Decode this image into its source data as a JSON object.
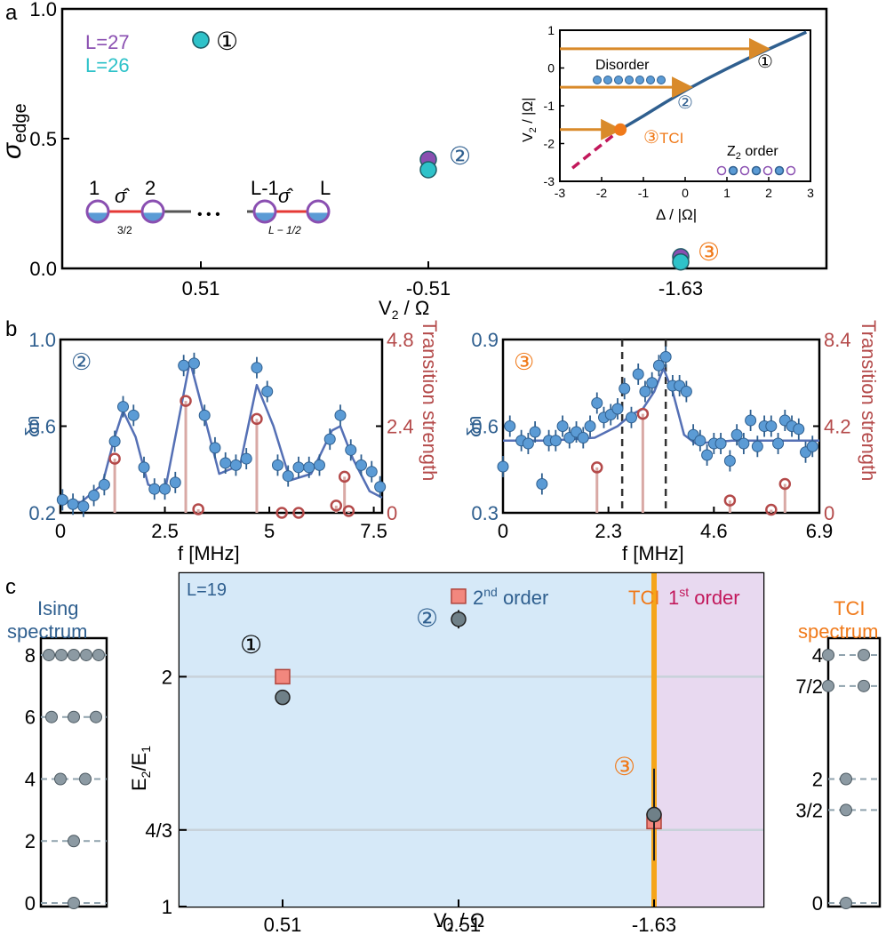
{
  "panel_labels": [
    "a",
    "b",
    "c"
  ],
  "colors": {
    "purple": "#8a4fb1",
    "teal": "#2ec2c9",
    "blue": "#5b9bd5",
    "darkblue": "#2f5f8f",
    "fit": "#5570b5",
    "orange": "#f07a1a",
    "arrow": "#d98a2a",
    "crimson": "#c2185b",
    "red_open": "#b44a4a",
    "stem": "#d9a9a5",
    "gray_dot": "#8c9aa3",
    "light_blue_region": "#d6e9f8",
    "light_purple_region": "#e8d9f0",
    "tci_line": "#f5a51a",
    "salmon": "#f2877e"
  },
  "chart_data": [
    {
      "id": "a-main",
      "type": "scatter",
      "ylabel": "σ",
      "ylabel_sub": "edge",
      "xlabel": "V",
      "xlabel_sub": "2",
      "xlabel_tail": " / Ω",
      "ylim": [
        0,
        1
      ],
      "yticks": [
        "0.0",
        "0.5",
        "1.0"
      ],
      "categories": [
        "0.51",
        "-0.51",
        "-1.63"
      ],
      "legend": [
        "L=27",
        "L=26"
      ],
      "series": [
        {
          "name": "L=27",
          "color": "purple",
          "points": [
            {
              "cat": 0,
              "y": 0.88
            },
            {
              "cat": 1,
              "y": 0.42
            },
            {
              "cat": 2,
              "y": 0.045
            }
          ]
        },
        {
          "name": "L=26",
          "color": "teal",
          "points": [
            {
              "cat": 0,
              "y": 0.88
            },
            {
              "cat": 1,
              "y": 0.38
            },
            {
              "cat": 2,
              "y": 0.025
            }
          ]
        }
      ],
      "annotations": [
        "①",
        "②",
        "③"
      ],
      "chain_labels": {
        "site1": "1",
        "site2": "2",
        "siteL1": "L-1",
        "siteL": "L",
        "sigma": "σ̂",
        "frac1": "3/2",
        "fracL": "L − 1/2",
        "dots": "• • •"
      }
    },
    {
      "id": "a-inset",
      "type": "line",
      "xlabel": "Δ / |Ω|",
      "ylabel": "V",
      "ylabel_sub": "2",
      "ylabel_tail": " / |Ω|",
      "xlim": [
        -3,
        3
      ],
      "ylim": [
        -3,
        1
      ],
      "xticks": [
        "-3",
        "-2",
        "-1",
        "0",
        "1",
        "2",
        "3"
      ],
      "yticks": [
        "1",
        "0",
        "-1",
        "-2",
        "-3"
      ],
      "boundary_solid": [
        [
          -1.55,
          -1.63
        ],
        [
          -1.0,
          -1.27
        ],
        [
          -0.5,
          -0.93
        ],
        [
          0.0,
          -0.6
        ],
        [
          0.5,
          -0.3
        ],
        [
          1.0,
          -0.02
        ],
        [
          1.5,
          0.25
        ],
        [
          2.0,
          0.5
        ],
        [
          2.5,
          0.75
        ],
        [
          2.9,
          0.95
        ]
      ],
      "boundary_dashed": [
        [
          -2.7,
          -2.65
        ],
        [
          -1.55,
          -1.63
        ]
      ],
      "tci_point": [
        -1.55,
        -1.63
      ],
      "arrows_y": [
        0.51,
        -0.51,
        -1.63
      ],
      "texts": {
        "disorder": "Disorder",
        "z2": "Z",
        "z2_sub": "2",
        "z2_tail": " order",
        "tci": "TCI",
        "m1": "①",
        "m2": "②",
        "m3": "③"
      }
    },
    {
      "id": "b-left",
      "type": "scatter",
      "annotation": "②",
      "xlabel": "f [MHz]",
      "ylabel": "δn",
      "ylabel_right": "Transition strength",
      "xlim": [
        0,
        7.7
      ],
      "ylim": [
        0.2,
        1.0
      ],
      "ylim_right": [
        0,
        4.8
      ],
      "xticks": [
        "0",
        "2.5",
        "5",
        "7.5"
      ],
      "yticks": [
        "0.2",
        "0.6",
        "1.0"
      ],
      "yticks_right": [
        "0",
        "2.4",
        "4.8"
      ],
      "points": [
        [
          0.05,
          0.26
        ],
        [
          0.3,
          0.24
        ],
        [
          0.55,
          0.23
        ],
        [
          0.8,
          0.28
        ],
        [
          1.05,
          0.33
        ],
        [
          1.3,
          0.53
        ],
        [
          1.5,
          0.69
        ],
        [
          1.75,
          0.65
        ],
        [
          2.0,
          0.41
        ],
        [
          2.25,
          0.31
        ],
        [
          2.5,
          0.31
        ],
        [
          2.75,
          0.34
        ],
        [
          2.95,
          0.88
        ],
        [
          3.2,
          0.89
        ],
        [
          3.45,
          0.65
        ],
        [
          3.7,
          0.5
        ],
        [
          3.95,
          0.43
        ],
        [
          4.2,
          0.42
        ],
        [
          4.45,
          0.45
        ],
        [
          4.7,
          0.87
        ],
        [
          4.95,
          0.76
        ],
        [
          5.2,
          0.42
        ],
        [
          5.45,
          0.37
        ],
        [
          5.7,
          0.41
        ],
        [
          5.95,
          0.41
        ],
        [
          6.2,
          0.42
        ],
        [
          6.45,
          0.54
        ],
        [
          6.7,
          0.65
        ],
        [
          6.95,
          0.49
        ],
        [
          7.2,
          0.42
        ],
        [
          7.45,
          0.39
        ],
        [
          7.65,
          0.32
        ]
      ],
      "fit": [
        [
          0,
          0.25
        ],
        [
          0.5,
          0.25
        ],
        [
          1.0,
          0.33
        ],
        [
          1.3,
          0.55
        ],
        [
          1.5,
          0.67
        ],
        [
          1.8,
          0.55
        ],
        [
          2.1,
          0.33
        ],
        [
          2.5,
          0.3
        ],
        [
          2.8,
          0.6
        ],
        [
          3.1,
          0.9
        ],
        [
          3.4,
          0.68
        ],
        [
          3.8,
          0.38
        ],
        [
          4.3,
          0.42
        ],
        [
          4.7,
          0.79
        ],
        [
          5.1,
          0.6
        ],
        [
          5.5,
          0.35
        ],
        [
          6.0,
          0.38
        ],
        [
          6.5,
          0.58
        ],
        [
          6.7,
          0.6
        ],
        [
          7.0,
          0.45
        ],
        [
          7.4,
          0.3
        ],
        [
          7.7,
          0.27
        ]
      ],
      "stems": [
        [
          1.3,
          1.5
        ],
        [
          3.0,
          3.1
        ],
        [
          3.3,
          0.1
        ],
        [
          4.7,
          2.6
        ],
        [
          5.3,
          0.0
        ],
        [
          5.7,
          0.0
        ],
        [
          6.6,
          0.2
        ],
        [
          6.8,
          1.0
        ],
        [
          6.9,
          0.05
        ]
      ]
    },
    {
      "id": "b-right",
      "type": "scatter",
      "annotation": "③",
      "xlabel": "f [MHz]",
      "ylabel": "δn",
      "ylabel_right": "Transition strength",
      "xlim": [
        0,
        6.9
      ],
      "ylim": [
        0.3,
        0.9
      ],
      "ylim_right": [
        0,
        8.4
      ],
      "xticks": [
        "0",
        "2.3",
        "4.6",
        "6.9"
      ],
      "yticks": [
        "0.3",
        "0.6",
        "0.9"
      ],
      "yticks_right": [
        "0",
        "4.2",
        "8.4"
      ],
      "points": [
        [
          0.0,
          0.46
        ],
        [
          0.15,
          0.6
        ],
        [
          0.4,
          0.55
        ],
        [
          0.55,
          0.54
        ],
        [
          0.7,
          0.58
        ],
        [
          0.85,
          0.4
        ],
        [
          1.0,
          0.55
        ],
        [
          1.15,
          0.55
        ],
        [
          1.3,
          0.6
        ],
        [
          1.45,
          0.56
        ],
        [
          1.6,
          0.58
        ],
        [
          1.75,
          0.56
        ],
        [
          1.9,
          0.6
        ],
        [
          2.05,
          0.68
        ],
        [
          2.2,
          0.63
        ],
        [
          2.35,
          0.64
        ],
        [
          2.5,
          0.66
        ],
        [
          2.65,
          0.73
        ],
        [
          2.8,
          0.63
        ],
        [
          2.95,
          0.78
        ],
        [
          3.1,
          0.72
        ],
        [
          3.25,
          0.75
        ],
        [
          3.4,
          0.81
        ],
        [
          3.55,
          0.84
        ],
        [
          3.7,
          0.74
        ],
        [
          3.85,
          0.74
        ],
        [
          4.0,
          0.72
        ],
        [
          4.15,
          0.57
        ],
        [
          4.3,
          0.55
        ],
        [
          4.45,
          0.5
        ],
        [
          4.6,
          0.54
        ],
        [
          4.75,
          0.54
        ],
        [
          4.95,
          0.48
        ],
        [
          5.1,
          0.57
        ],
        [
          5.25,
          0.54
        ],
        [
          5.4,
          0.62
        ],
        [
          5.55,
          0.53
        ],
        [
          5.7,
          0.6
        ],
        [
          5.85,
          0.6
        ],
        [
          6.0,
          0.54
        ],
        [
          6.15,
          0.62
        ],
        [
          6.3,
          0.6
        ],
        [
          6.45,
          0.59
        ],
        [
          6.6,
          0.51
        ],
        [
          6.75,
          0.53
        ]
      ],
      "fit": [
        [
          0,
          0.55
        ],
        [
          1.0,
          0.55
        ],
        [
          2.0,
          0.56
        ],
        [
          2.5,
          0.6
        ],
        [
          2.8,
          0.64
        ],
        [
          3.05,
          0.66
        ],
        [
          3.3,
          0.72
        ],
        [
          3.5,
          0.8
        ],
        [
          3.7,
          0.72
        ],
        [
          3.95,
          0.57
        ],
        [
          4.2,
          0.54
        ],
        [
          5.0,
          0.55
        ],
        [
          6.9,
          0.55
        ]
      ],
      "stems": [
        [
          2.05,
          2.2
        ],
        [
          3.05,
          4.8
        ],
        [
          4.95,
          0.6
        ],
        [
          5.85,
          0.15
        ],
        [
          6.15,
          1.4
        ]
      ],
      "vlines_dashed": [
        2.6,
        3.55
      ]
    },
    {
      "id": "c-main",
      "type": "scatter",
      "label": "L=19",
      "xlabel": "V",
      "xlabel_sub": "2",
      "xlabel_tail": " / Ω",
      "ylabel": "E",
      "ylabel_sub1": "2",
      "ylabel_mid": "/E",
      "ylabel_sub2": "1",
      "ylim": [
        1,
        2.45
      ],
      "ytick_labels": [
        "1",
        "4/3",
        "2"
      ],
      "ytick_values": [
        1,
        1.3333,
        2
      ],
      "categories": [
        "0.51",
        "-0.51",
        "-1.63"
      ],
      "regions": {
        "second_order": "2",
        "second_sup": "nd",
        "second_tail": " order",
        "tci": "TCI",
        "first": "1",
        "first_sup": "st",
        "first_tail": " order"
      },
      "squares": [
        {
          "cat": 0,
          "y": 2.0
        },
        {
          "cat": 1,
          "y": 2.35
        },
        {
          "cat": 2,
          "y": 1.37
        }
      ],
      "dots": [
        {
          "cat": 0,
          "y": 1.91,
          "err": 0.03
        },
        {
          "cat": 1,
          "y": 2.25,
          "err": 0.04
        },
        {
          "cat": 2,
          "y": 1.4,
          "err": 0.2
        }
      ],
      "annotations": [
        "①",
        "②",
        "③"
      ]
    },
    {
      "id": "c-ising",
      "type": "scatter",
      "title_line1": "Ising",
      "title_line2": "spectrum",
      "ytick_labels": [
        "0",
        "2",
        "4",
        "6",
        "8"
      ],
      "levels": [
        {
          "y": 0,
          "n": 1
        },
        {
          "y": 2,
          "n": 1
        },
        {
          "y": 4,
          "n": 2
        },
        {
          "y": 6,
          "n": 3
        },
        {
          "y": 8,
          "n": 5
        }
      ]
    },
    {
      "id": "c-tci",
      "type": "scatter",
      "title_line1": "TCI",
      "title_line2": "spectrum",
      "ytick_labels": [
        "0",
        "3/2",
        "2",
        "7/2",
        "4"
      ],
      "levels": [
        {
          "y": 0,
          "n": 1
        },
        {
          "y": 1.5,
          "n": 1
        },
        {
          "y": 2,
          "n": 1
        },
        {
          "y": 3.5,
          "n": 2
        },
        {
          "y": 4,
          "n": 2
        }
      ]
    }
  ]
}
